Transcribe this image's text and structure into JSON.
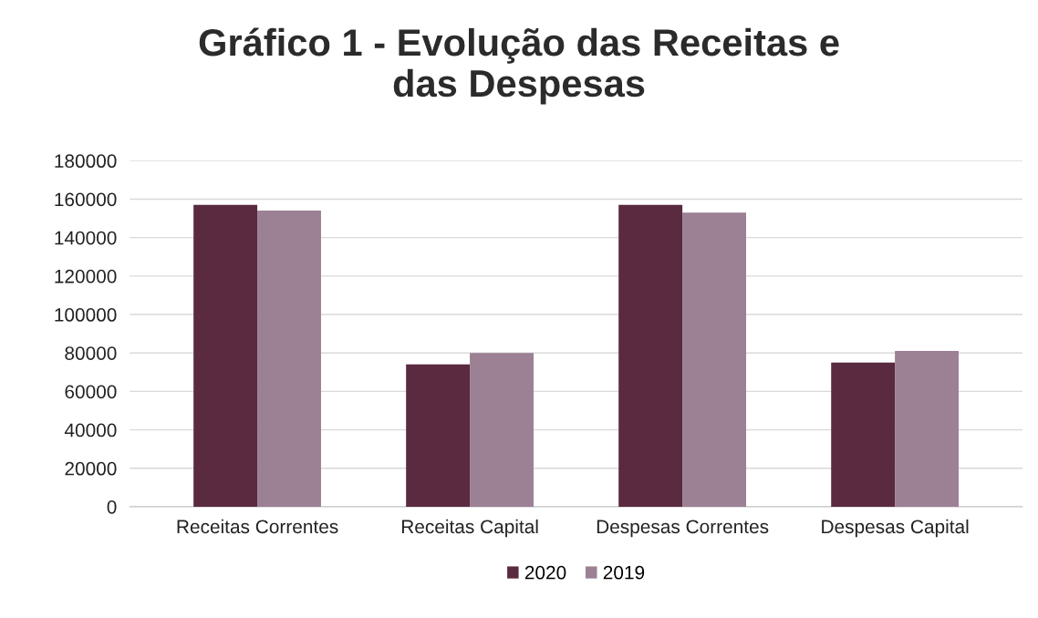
{
  "chart_data": {
    "type": "bar",
    "title": "Gráfico 1 - Evolução das Receitas e\ndas Despesas",
    "categories": [
      "Receitas Correntes",
      "Receitas Capital",
      "Despesas Correntes",
      "Despesas Capital"
    ],
    "series": [
      {
        "name": "2020",
        "color": "#5a2a40",
        "values": [
          157000,
          74000,
          157000,
          75000
        ]
      },
      {
        "name": "2019",
        "color": "#9c8094",
        "values": [
          154000,
          80000,
          153000,
          81000
        ]
      }
    ],
    "ylim": [
      0,
      180000
    ],
    "yticks": [
      0,
      20000,
      40000,
      60000,
      80000,
      100000,
      120000,
      140000,
      160000,
      180000
    ],
    "grid": "y",
    "legend": "bottom"
  }
}
